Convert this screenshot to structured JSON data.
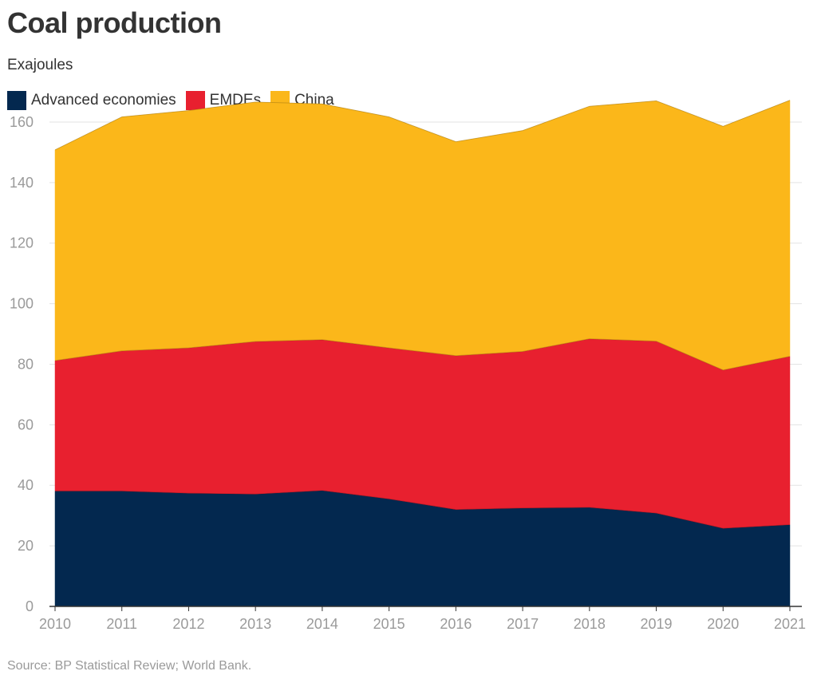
{
  "header": {
    "title": "Coal production",
    "subtitle": "Exajoules"
  },
  "footer": {
    "source": "Source: BP Statistical Review; World Bank."
  },
  "colors": {
    "Advanced economies": "#03284f",
    "EMDEs": "#e8202f",
    "China": "#fbb71a",
    "grid": "#e3e3e3",
    "axis_text": "#9a9a9a"
  },
  "chart_data": {
    "type": "area",
    "stacked": true,
    "title": "Coal production",
    "subtitle": "Exajoules",
    "xlabel": "",
    "ylabel": "",
    "x": [
      "2010",
      "2011",
      "2012",
      "2013",
      "2014",
      "2015",
      "2016",
      "2017",
      "2018",
      "2019",
      "2020",
      "2021"
    ],
    "ylim": [
      0,
      170
    ],
    "yticks": [
      0,
      20,
      40,
      60,
      80,
      100,
      120,
      140,
      160
    ],
    "grid": true,
    "legend_position": "top-left",
    "series": [
      {
        "name": "Advanced economies",
        "values": [
          38.1,
          38.1,
          37.4,
          37.1,
          38.3,
          35.5,
          32.0,
          32.5,
          32.7,
          30.8,
          25.8,
          27.0
        ]
      },
      {
        "name": "EMDEs",
        "values": [
          43.1,
          46.3,
          48.0,
          50.4,
          49.8,
          49.9,
          50.8,
          51.7,
          55.7,
          56.8,
          52.3,
          55.6
        ]
      },
      {
        "name": "China",
        "values": [
          69.6,
          77.3,
          78.4,
          79.1,
          77.9,
          76.3,
          70.7,
          73.0,
          76.8,
          79.4,
          80.5,
          84.6
        ]
      }
    ],
    "source": "Source: BP Statistical Review; World Bank."
  }
}
